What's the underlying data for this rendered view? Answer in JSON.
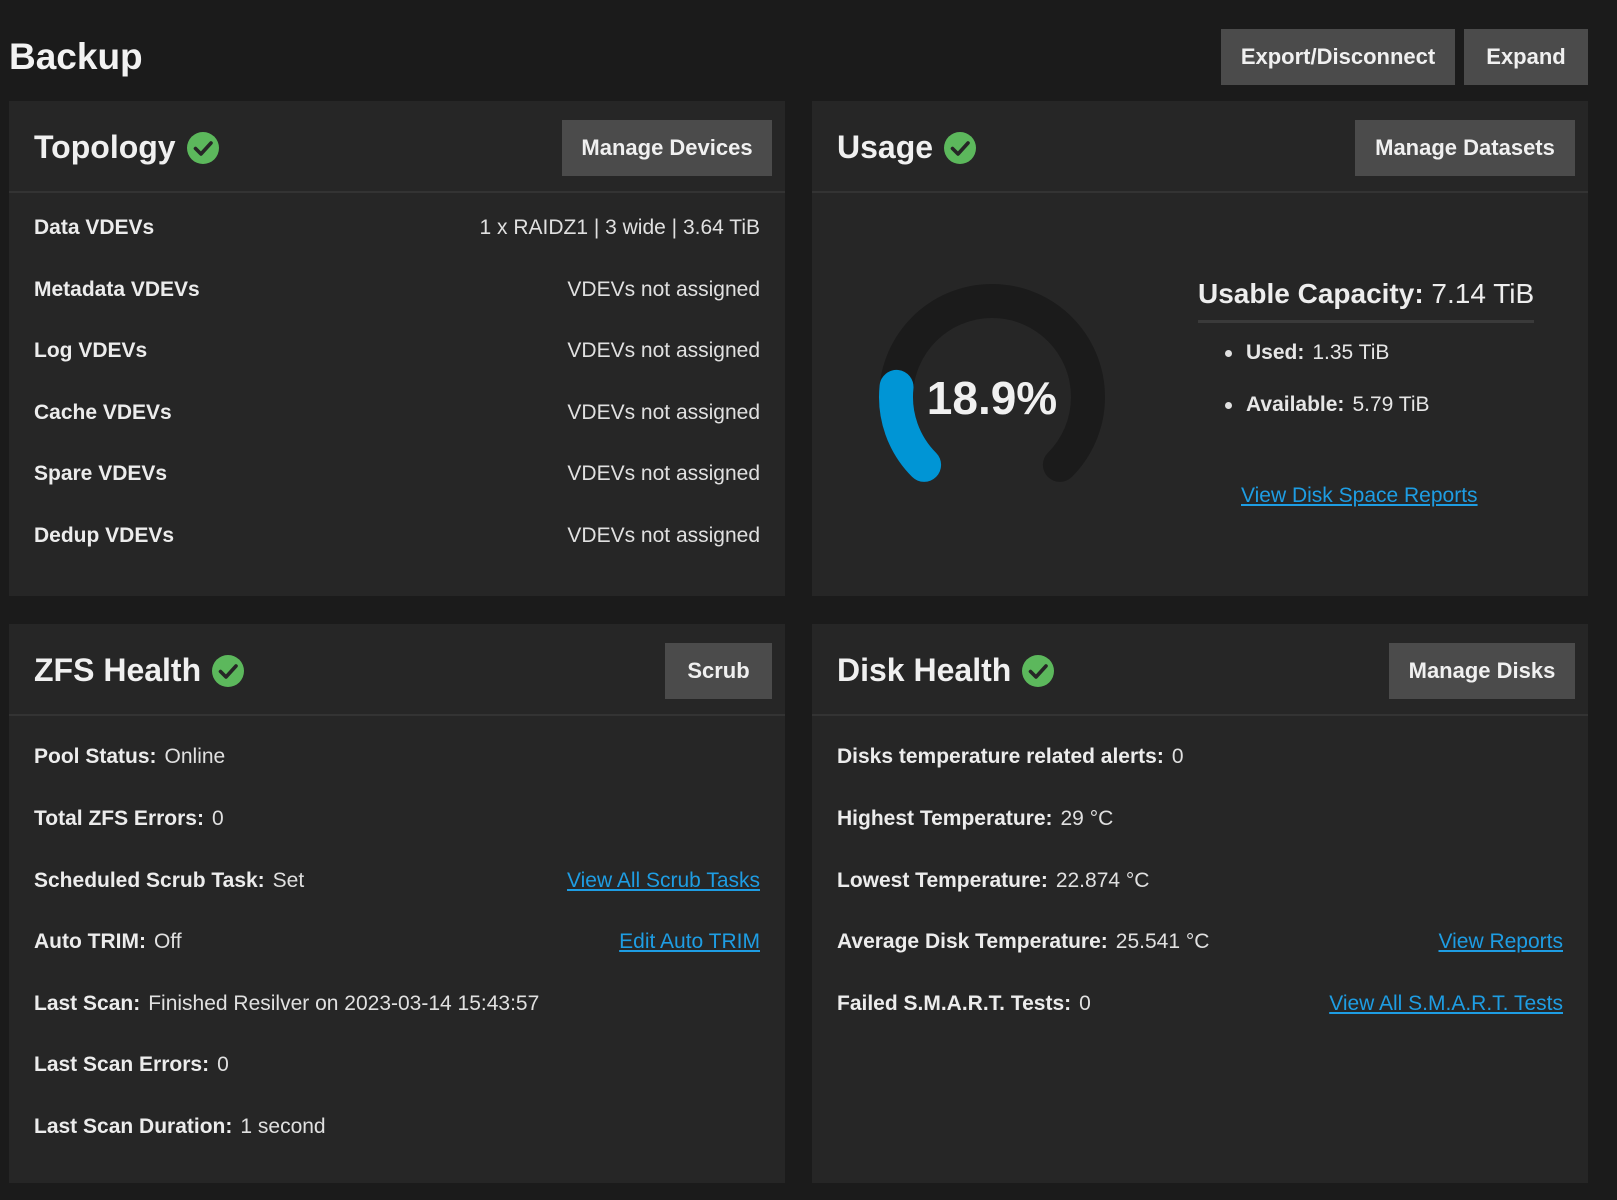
{
  "pool": {
    "title": "Backup",
    "export_label": "Export/Disconnect",
    "expand_label": "Expand"
  },
  "topology": {
    "title": "Topology",
    "button": "Manage Devices",
    "rows": [
      {
        "label": "Data VDEVs",
        "value": "1 x RAIDZ1 | 3 wide | 3.64 TiB"
      },
      {
        "label": "Metadata VDEVs",
        "value": "VDEVs not assigned"
      },
      {
        "label": "Log VDEVs",
        "value": "VDEVs not assigned"
      },
      {
        "label": "Cache VDEVs",
        "value": "VDEVs not assigned"
      },
      {
        "label": "Spare VDEVs",
        "value": "VDEVs not assigned"
      },
      {
        "label": "Dedup VDEVs",
        "value": "VDEVs not assigned"
      }
    ]
  },
  "usage": {
    "title": "Usage",
    "button": "Manage Datasets",
    "percent_label": "18.9%",
    "percent_value": 0.189,
    "capacity_label": "Usable Capacity:",
    "capacity_value": "7.14 TiB",
    "used_label": "Used:",
    "used_value": "1.35 TiB",
    "available_label": "Available:",
    "available_value": "5.79 TiB",
    "report_link": "View Disk Space Reports",
    "gauge_color": "#0095d5",
    "track_color": "#1b1b1b"
  },
  "zfs": {
    "title": "ZFS Health",
    "button": "Scrub",
    "pool_status_label": "Pool Status:",
    "pool_status_value": "Online",
    "errors_label": "Total ZFS Errors:",
    "errors_value": "0",
    "scrub_label": "Scheduled Scrub Task:",
    "scrub_value": "Set",
    "scrub_link": "View All Scrub Tasks",
    "trim_label": "Auto TRIM:",
    "trim_value": "Off",
    "trim_link": "Edit Auto TRIM",
    "last_scan_label": "Last Scan:",
    "last_scan_value": "Finished Resilver on 2023-03-14 15:43:57",
    "scan_errors_label": "Last Scan Errors:",
    "scan_errors_value": "0",
    "scan_duration_label": "Last Scan Duration:",
    "scan_duration_value": "1 second"
  },
  "disk": {
    "title": "Disk Health",
    "button": "Manage Disks",
    "temp_alerts_label": "Disks temperature related alerts:",
    "temp_alerts_value": "0",
    "highest_label": "Highest Temperature:",
    "highest_value": "29 °C",
    "lowest_label": "Lowest Temperature:",
    "lowest_value": "22.874 °C",
    "avg_label": "Average Disk Temperature:",
    "avg_value": "25.541 °C",
    "reports_link": "View Reports",
    "smart_label": "Failed S.M.A.R.T. Tests:",
    "smart_value": "0",
    "smart_link": "View All S.M.A.R.T. Tests"
  },
  "status_color": "#5cb85c"
}
